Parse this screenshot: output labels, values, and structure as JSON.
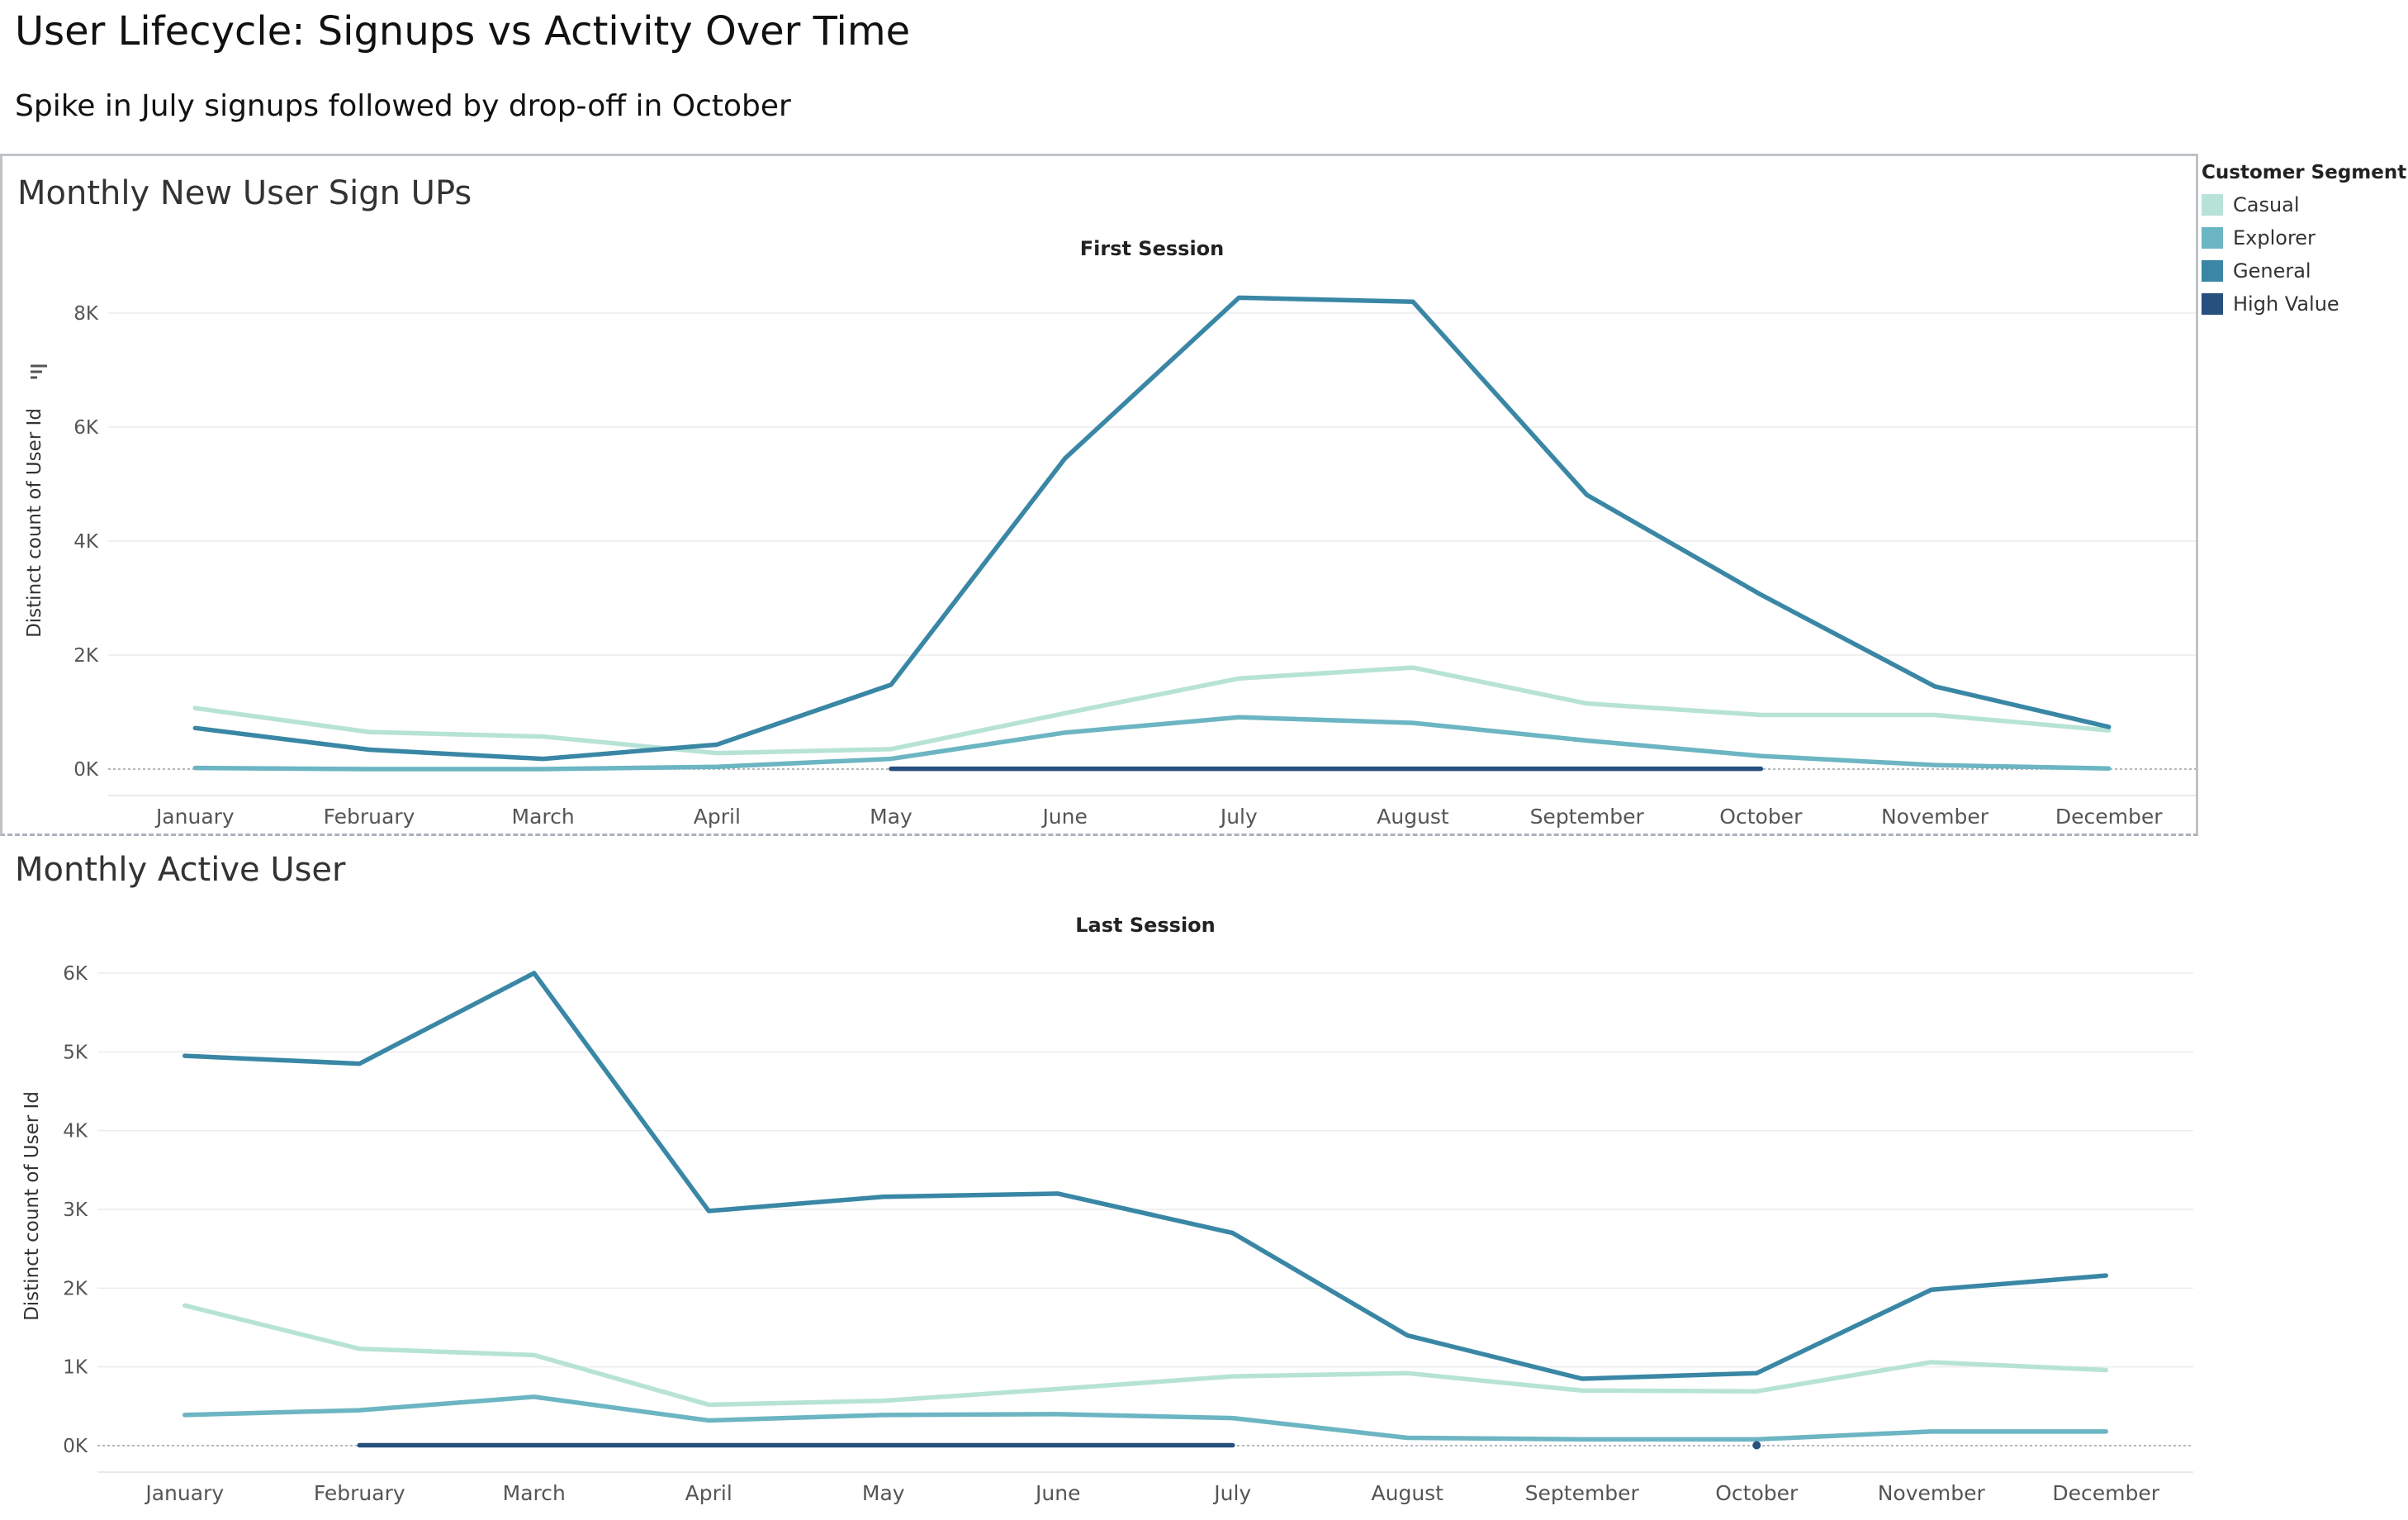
{
  "dashboard": {
    "title": "User Lifecycle: Signups vs Activity Over Time",
    "subtitle": "Spike in July signups followed by drop-off in October"
  },
  "legend": {
    "title": "Customer Segment",
    "items": [
      {
        "label": "Casual",
        "color": "#b7e3d6"
      },
      {
        "label": "Explorer",
        "color": "#6cb5c3"
      },
      {
        "label": "General",
        "color": "#3a87a5"
      },
      {
        "label": "High Value",
        "color": "#28507e"
      }
    ]
  },
  "panels": {
    "signups": {
      "title": "Monthly New User Sign UPs",
      "sort_icon": "sort-icon"
    },
    "active": {
      "title": "Monthly Active User"
    }
  },
  "chart_data": [
    {
      "type": "line",
      "title": "First Session",
      "xlabel": "",
      "ylabel": "Distinct count of User Id",
      "ylim": [
        0,
        8800
      ],
      "yticks": [
        0,
        2000,
        4000,
        6000,
        8000
      ],
      "ytick_labels": [
        "0K",
        "2K",
        "4K",
        "6K",
        "8K"
      ],
      "grid": true,
      "legend": "right",
      "categories": [
        "January",
        "February",
        "March",
        "April",
        "May",
        "June",
        "July",
        "August",
        "September",
        "October",
        "November",
        "December"
      ],
      "series": [
        {
          "name": "Casual",
          "color": "#b7e3d6",
          "values": [
            1070,
            650,
            570,
            280,
            350,
            980,
            1590,
            1780,
            1150,
            950,
            950,
            680
          ]
        },
        {
          "name": "Explorer",
          "color": "#6cb5c3",
          "values": [
            20,
            0,
            0,
            40,
            180,
            640,
            910,
            810,
            500,
            230,
            70,
            10
          ]
        },
        {
          "name": "General",
          "color": "#3a87a5",
          "values": [
            720,
            340,
            180,
            430,
            1480,
            5450,
            8270,
            8200,
            4810,
            3060,
            1450,
            740
          ]
        },
        {
          "name": "High Value",
          "color": "#28507e",
          "values": [
            null,
            null,
            null,
            null,
            5,
            5,
            5,
            5,
            5,
            5,
            null,
            null
          ]
        }
      ]
    },
    {
      "type": "line",
      "title": "Last Session",
      "xlabel": "",
      "ylabel": "Distinct count of User Id",
      "ylim": [
        0,
        6000
      ],
      "yticks": [
        0,
        1000,
        2000,
        3000,
        4000,
        5000,
        6000
      ],
      "ytick_labels": [
        "0K",
        "1K",
        "2K",
        "3K",
        "4K",
        "5K",
        "6K"
      ],
      "grid": true,
      "legend": "right",
      "categories": [
        "January",
        "February",
        "March",
        "April",
        "May",
        "June",
        "July",
        "August",
        "September",
        "October",
        "November",
        "December"
      ],
      "series": [
        {
          "name": "Casual",
          "color": "#b7e3d6",
          "values": [
            1780,
            1230,
            1150,
            520,
            570,
            720,
            880,
            920,
            700,
            690,
            1060,
            960
          ]
        },
        {
          "name": "Explorer",
          "color": "#6cb5c3",
          "values": [
            390,
            450,
            620,
            320,
            390,
            400,
            350,
            100,
            80,
            80,
            180,
            180
          ]
        },
        {
          "name": "General",
          "color": "#3a87a5",
          "values": [
            4950,
            4850,
            6000,
            2980,
            3160,
            3200,
            2700,
            1400,
            850,
            920,
            1980,
            2160
          ]
        },
        {
          "name": "High Value",
          "color": "#28507e",
          "values": [
            null,
            5,
            5,
            5,
            5,
            5,
            5,
            null,
            null,
            5,
            null,
            null
          ]
        }
      ]
    }
  ]
}
